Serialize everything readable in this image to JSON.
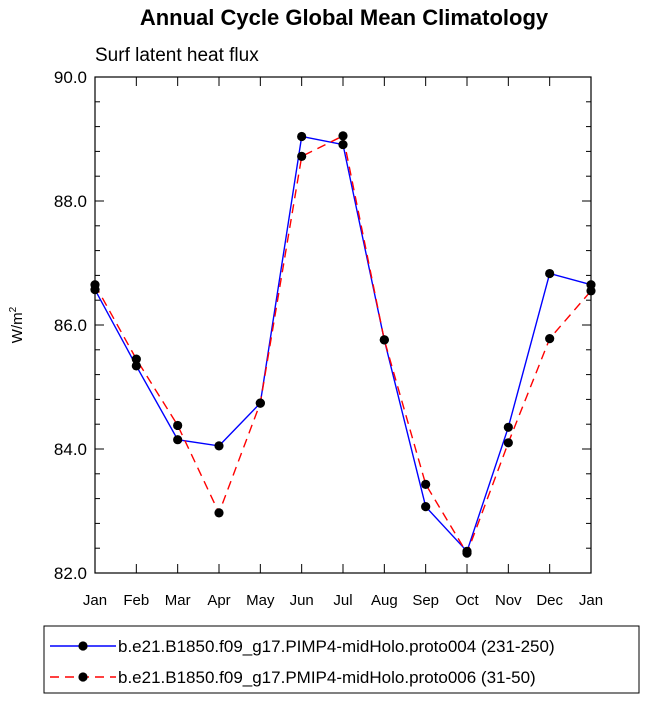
{
  "chart_data": {
    "type": "line",
    "title": "Annual Cycle Global Mean Climatology",
    "subtitle": "Surf latent heat flux",
    "ylabel": "W/m",
    "ylabel_sup": "2",
    "xlabel": "",
    "categories": [
      "Jan",
      "Feb",
      "Mar",
      "Apr",
      "May",
      "Jun",
      "Jul",
      "Aug",
      "Sep",
      "Oct",
      "Nov",
      "Dec",
      "Jan"
    ],
    "ylim": [
      82.0,
      90.0
    ],
    "yticks": [
      "82.0",
      "84.0",
      "86.0",
      "88.0",
      "90.0"
    ],
    "yticks_values": [
      82.0,
      84.0,
      86.0,
      88.0,
      90.0
    ],
    "grid": false,
    "legend_position": "bottom",
    "series": [
      {
        "name": "b.e21.B1850.f09_g17.PIMP4-midHolo.proto004 (231-250)",
        "color": "#0000ff",
        "dash": "solid",
        "values": [
          86.57,
          85.34,
          84.15,
          84.05,
          84.74,
          89.04,
          88.91,
          85.76,
          83.07,
          82.35,
          84.35,
          86.83,
          86.65
        ]
      },
      {
        "name": "b.e21.B1850.f09_g17.PMIP4-midHolo.proto006 (31-50)",
        "color": "#ff0000",
        "dash": "dashed",
        "values": [
          86.65,
          85.45,
          84.38,
          82.97,
          84.74,
          88.72,
          89.05,
          85.76,
          83.43,
          82.32,
          84.1,
          85.78,
          86.55
        ]
      }
    ]
  }
}
